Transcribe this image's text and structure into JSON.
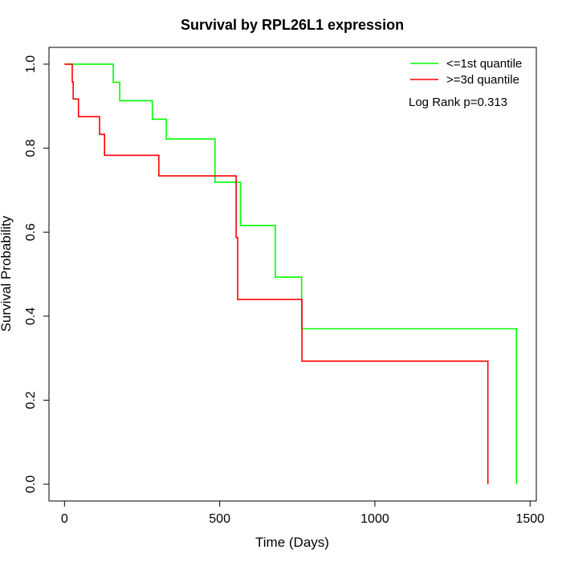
{
  "chart_data": {
    "type": "line",
    "title": "Survival by RPL26L1 expression",
    "xlabel": "Time (Days)",
    "ylabel": "Survival Probability",
    "xlim": [
      -50,
      1520
    ],
    "ylim": [
      -0.04,
      1.04
    ],
    "x_ticks": [
      0,
      500,
      1000,
      1500
    ],
    "x_tick_labels": [
      "0",
      "500",
      "1000",
      "1500"
    ],
    "y_ticks": [
      0.0,
      0.2,
      0.4,
      0.6,
      0.8,
      1.0
    ],
    "y_tick_labels": [
      "0.0",
      "0.2",
      "0.4",
      "0.6",
      "0.8",
      "1.0"
    ],
    "grid": false,
    "legend_position": "top-right",
    "annotation": "Log Rank p=0.313",
    "series": [
      {
        "name": "<=1st quantile",
        "color": "#00ff00",
        "step_times": [
          0,
          157,
          178,
          283,
          328,
          485,
          567,
          679,
          764,
          1456
        ],
        "step_values": [
          1.0,
          0.957,
          0.913,
          0.869,
          0.822,
          0.719,
          0.616,
          0.493,
          0.37,
          0.0
        ]
      },
      {
        "name": ">=3d quantile",
        "color": "#ff0000",
        "step_times": [
          0,
          25,
          28,
          45,
          113,
          129,
          304,
          553,
          558,
          765,
          1364
        ],
        "step_values": [
          1.0,
          0.958,
          0.917,
          0.875,
          0.833,
          0.783,
          0.734,
          0.587,
          0.44,
          0.293,
          0.0
        ]
      }
    ]
  }
}
